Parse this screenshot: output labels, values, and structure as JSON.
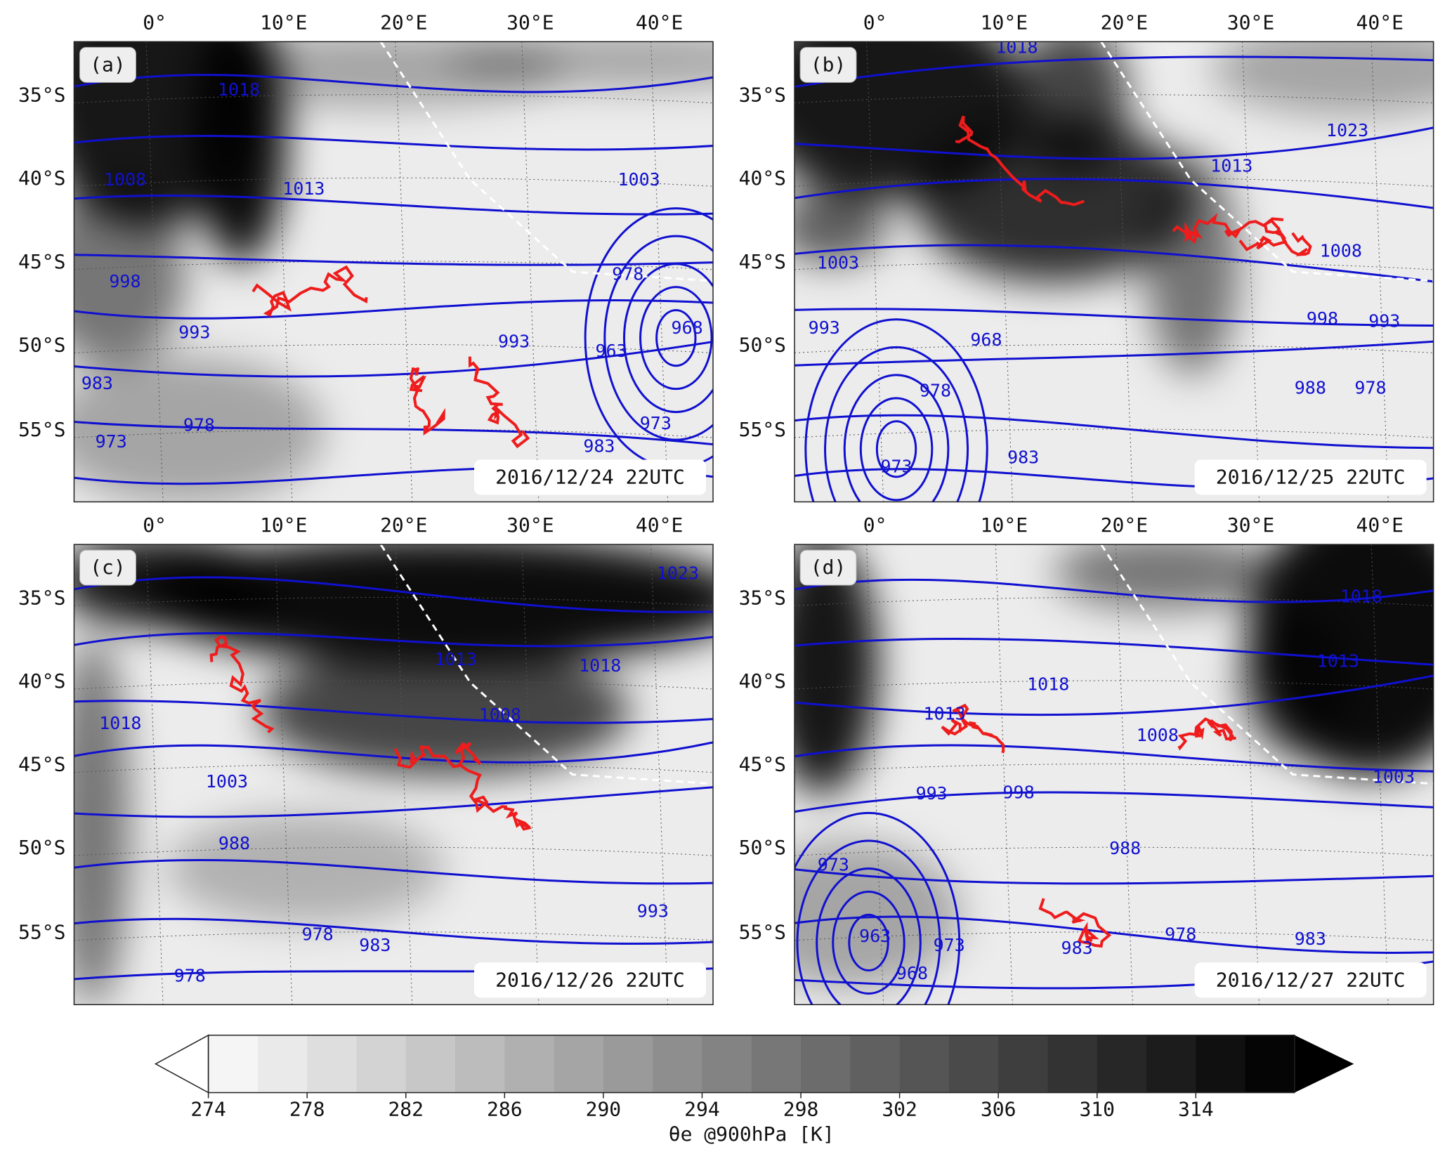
{
  "lon_ticks": [
    "0°",
    "10°E",
    "20°E",
    "30°E",
    "40°E"
  ],
  "lat_ticks": [
    "35°S",
    "40°S",
    "45°S",
    "50°S",
    "55°S"
  ],
  "panels": [
    {
      "label": "(a)",
      "time": "2016/12/24 22UTC",
      "contour_labels": [
        "1018",
        "1008",
        "1013",
        "998",
        "993",
        "983",
        "978",
        "973",
        "1003",
        "978",
        "993",
        "963",
        "968",
        "973",
        "983"
      ]
    },
    {
      "label": "(b)",
      "time": "2016/12/25 22UTC",
      "contour_labels": [
        "1018",
        "1023",
        "1013",
        "1003",
        "1008",
        "993",
        "968",
        "998",
        "993",
        "978",
        "988",
        "978",
        "973",
        "983"
      ]
    },
    {
      "label": "(c)",
      "time": "2016/12/26 22UTC",
      "contour_labels": [
        "1023",
        "1013",
        "1018",
        "1008",
        "1018",
        "1003",
        "988",
        "993",
        "978",
        "983",
        "978"
      ]
    },
    {
      "label": "(d)",
      "time": "2016/12/27 22UTC",
      "contour_labels": [
        "1018",
        "1018",
        "1013",
        "1013",
        "1008",
        "993",
        "998",
        "1003",
        "988",
        "973",
        "963",
        "968",
        "973",
        "983",
        "978",
        "983"
      ]
    }
  ],
  "colorbar": {
    "lim": [
      274,
      318
    ],
    "ticks": [
      274,
      278,
      282,
      286,
      290,
      294,
      298,
      302,
      306,
      310,
      314
    ],
    "label": "θe @900hPa [K]"
  }
}
